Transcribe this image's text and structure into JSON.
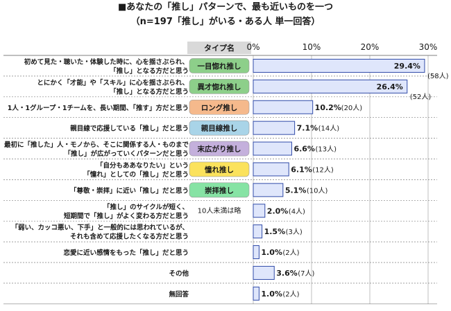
{
  "title_line1": "■あなたの「推し」パターンで、最も近いものを一つ",
  "title_line2": "（n=197「推し」がいる・ある人 単一回答）",
  "type_header": "タイプ名",
  "colors": {
    "bar_fill": "#dfe6fb",
    "bar_stroke": "#2f4aa8",
    "grid": "#bfbfbf",
    "row_border": "#7f7f7f",
    "label_bg": "#ffffff"
  },
  "chart_data": {
    "type": "bar",
    "orientation": "horizontal",
    "xlim": [
      0,
      30
    ],
    "xticks": [
      "0%",
      "10%",
      "20%",
      "30%"
    ],
    "unit": "%",
    "rows": [
      {
        "description": "初めて見た・聴いた・体験した時に、心を揺さぶられ、\n「推し」となる方だと思う",
        "type": "一目惚れ推し",
        "badge_color": "#8dcf8a",
        "value": 29.4,
        "value_label": "29.4%",
        "count_label": "(58人)"
      },
      {
        "description": "とにかく「才能」や「スキル」に心を揺さぶられ、\n「推し」となる方だと思う",
        "type": "異才惚れ推し",
        "badge_color": "#8dcf8a",
        "value": 26.4,
        "value_label": "26.4%",
        "count_label": "(52人)"
      },
      {
        "description": "1人・1グループ・1チームを、長い期間、「推す」方だと思う",
        "type": "ロング推し",
        "badge_color": "#f5b98c",
        "value": 10.2,
        "value_label": "10.2%",
        "count_label": "(20人)"
      },
      {
        "description": "親目線で応援している「推し」だと思う",
        "type": "親目線推し",
        "badge_color": "#a9d4e8",
        "value": 7.1,
        "value_label": "7.1%",
        "count_label": "(14人)"
      },
      {
        "description": "最初に「推した」人・モノから、そこに関係する人・ものまで\n「推し」が広がっていくパターンだと思う",
        "type": "末広がり推し",
        "badge_color": "#c4b0dc",
        "value": 6.6,
        "value_label": "6.6%",
        "count_label": "(13人)"
      },
      {
        "description": "「自分もああなりたい」という\n「憧れ」としての「推し」だと思う",
        "type": "憧れ推し",
        "badge_color": "#fbe25c",
        "value": 6.1,
        "value_label": "6.1%",
        "count_label": "(12人)"
      },
      {
        "description": "「尊敬・崇拝」に近い「推し」だと思う",
        "type": "崇拝推し",
        "badge_color": "#86e3a4",
        "value": 5.1,
        "value_label": "5.1%",
        "count_label": "(10人)"
      },
      {
        "description": "「推し」のサイクルが短く、\n短期間で「推し」がよく変わる方だと思う",
        "type": "",
        "badge_color": "",
        "value": 2.0,
        "value_label": "2.0%",
        "count_label": "(4人)"
      },
      {
        "description": "「弱い、カッコ悪い、下手」と一般的には思われているが、\nそれも含めて応援したくなる方だと思う",
        "type": "",
        "badge_color": "",
        "value": 1.5,
        "value_label": "1.5%",
        "count_label": "(3人)"
      },
      {
        "description": "恋愛に近い感情をもった「推し」だと思う",
        "type": "",
        "badge_color": "",
        "value": 1.0,
        "value_label": "1.0%",
        "count_label": "(2人)"
      },
      {
        "description": "その他",
        "type": "",
        "badge_color": "",
        "value": 3.6,
        "value_label": "3.6%",
        "count_label": "(7人)"
      },
      {
        "description": "無回答",
        "type": "",
        "badge_color": "",
        "value": 1.0,
        "value_label": "1.0%",
        "count_label": "(2人)"
      }
    ],
    "note": "10人未満は略",
    "note_rows": [
      7,
      8,
      9
    ]
  }
}
